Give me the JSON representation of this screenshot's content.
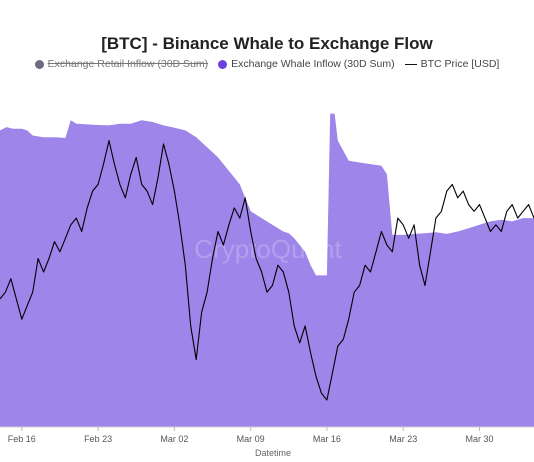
{
  "chart_data": {
    "type": "area",
    "title": "[BTC] - Binance Whale to Exchange Flow",
    "xlabel": "Datetime",
    "ylabel": "",
    "legend_position": "top-center",
    "watermark": "CryptoQuant",
    "x_range_days": [
      0,
      49
    ],
    "x_ticks": [
      {
        "label": "Feb 16",
        "day": 2
      },
      {
        "label": "Feb 23",
        "day": 9
      },
      {
        "label": "Mar 02",
        "day": 16
      },
      {
        "label": "Mar 09",
        "day": 23
      },
      {
        "label": "Mar 16",
        "day": 30
      },
      {
        "label": "Mar 23",
        "day": 37
      },
      {
        "label": "Mar 30",
        "day": 44
      }
    ],
    "series": [
      {
        "name": "Exchange Retail Inflow (30D Sum)",
        "hidden": true,
        "color": "#6b6b80"
      },
      {
        "name": "Exchange Whale Inflow (30D Sum)",
        "kind": "area",
        "color": "#6b3fe0",
        "fill": "#9d85ea",
        "range": [
          0,
          100
        ],
        "points": [
          [
            0,
            88
          ],
          [
            0.6,
            89
          ],
          [
            1.2,
            88.5
          ],
          [
            2,
            88.5
          ],
          [
            2.5,
            88
          ],
          [
            3,
            86.5
          ],
          [
            4,
            86
          ],
          [
            5,
            86
          ],
          [
            6,
            85.8
          ],
          [
            6.5,
            91
          ],
          [
            7,
            90
          ],
          [
            8,
            89.8
          ],
          [
            9,
            89.6
          ],
          [
            10,
            89.5
          ],
          [
            11,
            90
          ],
          [
            12,
            90
          ],
          [
            13,
            91
          ],
          [
            14,
            90.5
          ],
          [
            15,
            89.5
          ],
          [
            16,
            88.8
          ],
          [
            17,
            88
          ],
          [
            18,
            86
          ],
          [
            19,
            83
          ],
          [
            20,
            80
          ],
          [
            21,
            76
          ],
          [
            22,
            72
          ],
          [
            22.5,
            68
          ],
          [
            23,
            64
          ],
          [
            24,
            62
          ],
          [
            25,
            60
          ],
          [
            26,
            58
          ],
          [
            26.5,
            57.5
          ],
          [
            27,
            56
          ],
          [
            28,
            52
          ],
          [
            28.5,
            48
          ],
          [
            29,
            45
          ],
          [
            30,
            45
          ],
          [
            30.3,
            93
          ],
          [
            30.7,
            93
          ],
          [
            31,
            85
          ],
          [
            31.5,
            82
          ],
          [
            32,
            79
          ],
          [
            33,
            78.5
          ],
          [
            34,
            78
          ],
          [
            35,
            77.5
          ],
          [
            35.5,
            75
          ],
          [
            36,
            57
          ],
          [
            37,
            57
          ],
          [
            38,
            57.3
          ],
          [
            39,
            57.5
          ],
          [
            40,
            57.8
          ],
          [
            41,
            57.3
          ],
          [
            42,
            58
          ],
          [
            43,
            59
          ],
          [
            44,
            60
          ],
          [
            45,
            61
          ],
          [
            46,
            61.5
          ],
          [
            47,
            61
          ],
          [
            48,
            62
          ],
          [
            49,
            62
          ]
        ]
      },
      {
        "name": "BTC Price [USD]",
        "kind": "line",
        "color": "#000000",
        "range": [
          0,
          100
        ],
        "points": [
          [
            0,
            38
          ],
          [
            0.5,
            40
          ],
          [
            1,
            44
          ],
          [
            1.5,
            38
          ],
          [
            2,
            32
          ],
          [
            2.5,
            36
          ],
          [
            3,
            40
          ],
          [
            3.5,
            50
          ],
          [
            4,
            46
          ],
          [
            4.5,
            50
          ],
          [
            5,
            55
          ],
          [
            5.5,
            52
          ],
          [
            6,
            56
          ],
          [
            6.5,
            60
          ],
          [
            7,
            62
          ],
          [
            7.5,
            58
          ],
          [
            8,
            65
          ],
          [
            8.5,
            70
          ],
          [
            9,
            72
          ],
          [
            9.5,
            78
          ],
          [
            10,
            85
          ],
          [
            10.5,
            78
          ],
          [
            11,
            72
          ],
          [
            11.5,
            68
          ],
          [
            12,
            75
          ],
          [
            12.5,
            80
          ],
          [
            13,
            72
          ],
          [
            13.5,
            70
          ],
          [
            14,
            66
          ],
          [
            14.5,
            74
          ],
          [
            15,
            84
          ],
          [
            15.5,
            78
          ],
          [
            16,
            70
          ],
          [
            16.5,
            60
          ],
          [
            17,
            48
          ],
          [
            17.5,
            30
          ],
          [
            18,
            20
          ],
          [
            18.5,
            34
          ],
          [
            19,
            40
          ],
          [
            19.5,
            50
          ],
          [
            20,
            58
          ],
          [
            20.5,
            54
          ],
          [
            21,
            60
          ],
          [
            21.5,
            65
          ],
          [
            22,
            62
          ],
          [
            22.5,
            68
          ],
          [
            23,
            58
          ],
          [
            23.5,
            50
          ],
          [
            24,
            46
          ],
          [
            24.5,
            40
          ],
          [
            25,
            42
          ],
          [
            25.5,
            48
          ],
          [
            26,
            46
          ],
          [
            26.5,
            40
          ],
          [
            27,
            30
          ],
          [
            27.5,
            25
          ],
          [
            28,
            30
          ],
          [
            28.5,
            22
          ],
          [
            29,
            15
          ],
          [
            29.5,
            10
          ],
          [
            30,
            8
          ],
          [
            30.5,
            16
          ],
          [
            31,
            24
          ],
          [
            31.5,
            26
          ],
          [
            32,
            32
          ],
          [
            32.5,
            40
          ],
          [
            33,
            42
          ],
          [
            33.5,
            48
          ],
          [
            34,
            46
          ],
          [
            34.5,
            52
          ],
          [
            35,
            58
          ],
          [
            35.5,
            54
          ],
          [
            36,
            52
          ],
          [
            36.5,
            62
          ],
          [
            37,
            60
          ],
          [
            37.5,
            56
          ],
          [
            38,
            60
          ],
          [
            38.5,
            48
          ],
          [
            39,
            42
          ],
          [
            39.5,
            52
          ],
          [
            40,
            62
          ],
          [
            40.5,
            64
          ],
          [
            41,
            70
          ],
          [
            41.5,
            72
          ],
          [
            42,
            68
          ],
          [
            42.5,
            70
          ],
          [
            43,
            66
          ],
          [
            43.5,
            64
          ],
          [
            44,
            66
          ],
          [
            44.5,
            62
          ],
          [
            45,
            58
          ],
          [
            45.5,
            60
          ],
          [
            46,
            58
          ],
          [
            46.5,
            64
          ],
          [
            47,
            66
          ],
          [
            47.5,
            62
          ],
          [
            48,
            64
          ],
          [
            48.5,
            66
          ],
          [
            49,
            62
          ]
        ]
      }
    ]
  },
  "legend": [
    {
      "label": "Exchange Retail Inflow (30D Sum)",
      "color": "#6b6b80",
      "hidden": true,
      "marker": "dot"
    },
    {
      "label": "Exchange Whale Inflow (30D Sum)",
      "color": "#6b3fe0",
      "hidden": false,
      "marker": "dot"
    },
    {
      "label": "BTC Price [USD]",
      "color": "#000000",
      "hidden": false,
      "marker": "line"
    }
  ]
}
